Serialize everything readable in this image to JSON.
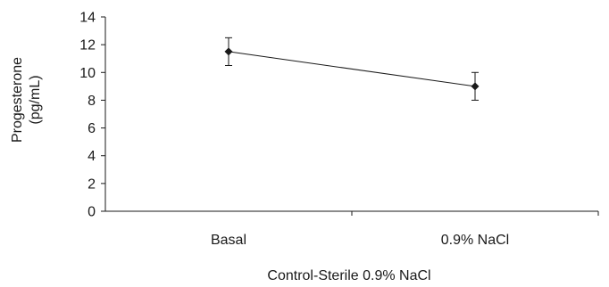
{
  "chart_data": {
    "type": "line",
    "categories": [
      "Basal",
      "0.9% NaCl"
    ],
    "series": [
      {
        "values": [
          11.5,
          9.0
        ],
        "errors": [
          1.0,
          1.0
        ]
      }
    ],
    "xlabel": "Control-Sterile 0.9% NaCl",
    "ylabel_lines": [
      "Progesterone",
      "(pg/mL)"
    ],
    "ylim": [
      0,
      14
    ],
    "yticks": [
      0,
      2,
      4,
      6,
      8,
      10,
      12,
      14
    ],
    "grid": false,
    "legend": "none",
    "colors": {
      "line": "#1a1a1a",
      "axis": "#1a1a1a",
      "text": "#1a1a1a"
    }
  }
}
